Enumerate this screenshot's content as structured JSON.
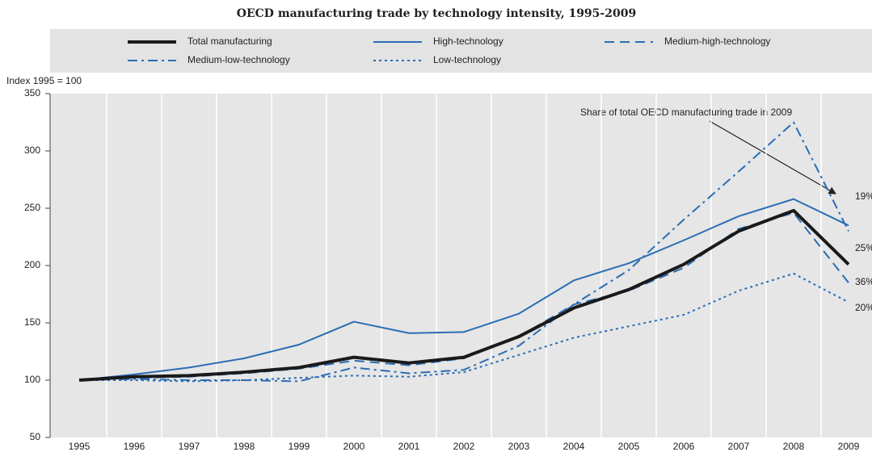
{
  "chart_data": {
    "type": "line",
    "title": "OECD manufacturing trade by technology intensity, 1995-2009",
    "y_axis_label": "Index 1995 = 100",
    "annotation": "Share of total OECD manufacturing trade in 2009",
    "share_labels": [
      "19%",
      "25%",
      "36%",
      "20%"
    ],
    "categories": [
      "1995",
      "1996",
      "1997",
      "1998",
      "1999",
      "2000",
      "2001",
      "2002",
      "2003",
      "2004",
      "2005",
      "2006",
      "2007",
      "2008",
      "2009"
    ],
    "series": [
      {
        "name": "Total manufacturing",
        "color": "#1a1a1a",
        "style": "solid",
        "width": 4,
        "values": [
          100,
          103,
          104,
          107,
          111,
          120,
          115,
          120,
          138,
          163,
          179,
          201,
          230,
          248,
          201
        ]
      },
      {
        "name": "High-technology",
        "color": "#2a6db5",
        "style": "solid",
        "width": 2,
        "values": [
          100,
          105,
          111,
          119,
          131,
          151,
          141,
          142,
          158,
          187,
          202,
          222,
          243,
          258,
          235
        ]
      },
      {
        "name": "Medium-high-technology",
        "color": "#2a6db5",
        "style": "dashed",
        "width": 2,
        "values": [
          100,
          102,
          103,
          106,
          110,
          117,
          113,
          119,
          138,
          166,
          178,
          198,
          232,
          246,
          185
        ]
      },
      {
        "name": "Medium-low-technology",
        "color": "#2a6db5",
        "style": "dashdot",
        "width": 2,
        "values": [
          100,
          101,
          100,
          100,
          99,
          111,
          106,
          109,
          130,
          166,
          196,
          240,
          282,
          325,
          230
        ]
      },
      {
        "name": "Low-technology",
        "color": "#2a6db5",
        "style": "dotted",
        "width": 2,
        "values": [
          100,
          100,
          99,
          100,
          102,
          104,
          103,
          107,
          122,
          137,
          147,
          157,
          178,
          193,
          168
        ]
      }
    ],
    "ylim": [
      50,
      350
    ],
    "yticks": [
      50,
      100,
      150,
      200,
      250,
      300,
      350
    ]
  }
}
